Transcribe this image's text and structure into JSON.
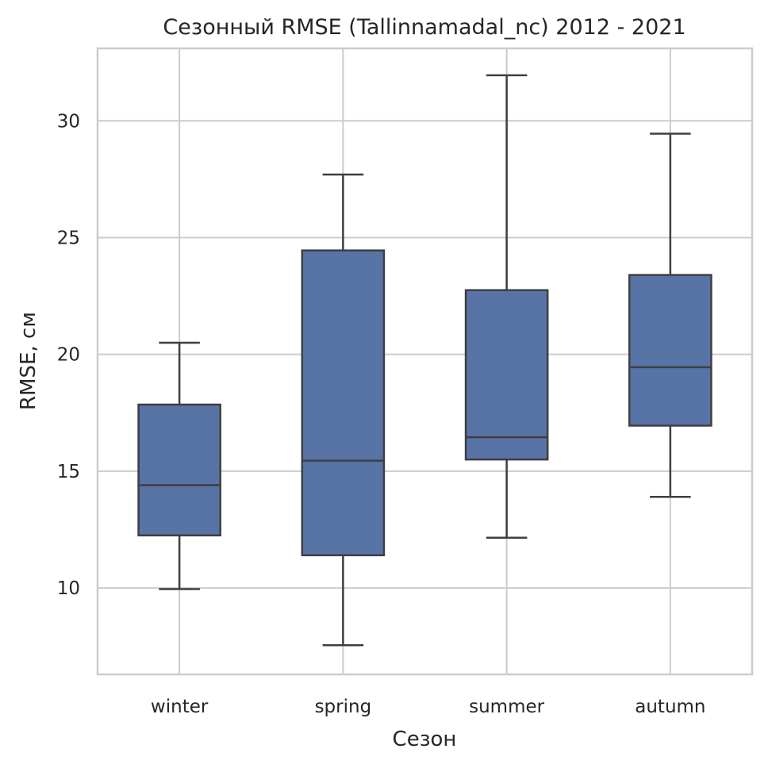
{
  "chart_data": {
    "type": "box",
    "title": "Сезонный RMSE (Tallinnamadal_nc) 2012 - 2021",
    "xlabel": "Сезон",
    "ylabel": "RMSE, см",
    "ylim": [
      6.3,
      33.1
    ],
    "yticks": [
      10,
      15,
      20,
      25,
      30
    ],
    "grid": true,
    "box_color": "#5874a6",
    "line_color": "#3f3f3f",
    "categories": [
      "winter",
      "spring",
      "summer",
      "autumn"
    ],
    "boxes": [
      {
        "category": "winter",
        "whisker_low": 9.95,
        "q1": 12.25,
        "median": 14.4,
        "q3": 17.85,
        "whisker_high": 20.5
      },
      {
        "category": "spring",
        "whisker_low": 7.55,
        "q1": 11.4,
        "median": 15.45,
        "q3": 24.45,
        "whisker_high": 27.7
      },
      {
        "category": "summer",
        "whisker_low": 12.15,
        "q1": 15.5,
        "median": 16.45,
        "q3": 22.75,
        "whisker_high": 31.95
      },
      {
        "category": "autumn",
        "whisker_low": 13.9,
        "q1": 16.95,
        "median": 19.45,
        "q3": 23.4,
        "whisker_high": 29.45
      }
    ]
  }
}
